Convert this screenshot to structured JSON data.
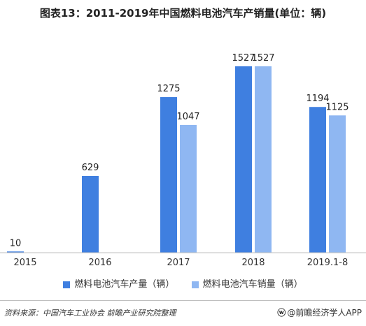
{
  "title": "图表13：2011-2019年中国燃料电池汽车产销量(单位：辆)",
  "chart_data": {
    "type": "bar",
    "categories": [
      "2015",
      "2016",
      "2017",
      "2018",
      "2019.1-8"
    ],
    "series": [
      {
        "name": "燃料电池汽车产量（辆）",
        "values": [
          10,
          629,
          1275,
          1527,
          1194
        ],
        "color": "#3f7fe0"
      },
      {
        "name": "燃料电池汽车销量（辆）",
        "values": [
          null,
          null,
          1047,
          1527,
          1125
        ],
        "color": "#8fb7f2"
      }
    ],
    "ylim": [
      0,
      1527
    ],
    "grid": false,
    "legend_position": "bottom"
  },
  "footer": {
    "source": "资料来源：中国汽车工业协会 前瞻产业研究院整理",
    "brand_icon": "weibo-icon",
    "brand": "@前瞻经济学人APP"
  }
}
